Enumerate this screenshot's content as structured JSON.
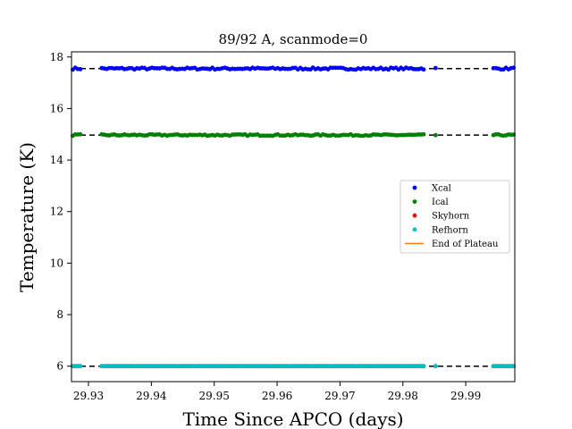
{
  "chart_data": {
    "type": "scatter",
    "title": "89/92 A, scanmode=0",
    "xlabel": "Time Since APCO (days)",
    "ylabel": "Temperature (K)",
    "xlim": [
      29.9273,
      29.9978
    ],
    "ylim": [
      5.4,
      18.2
    ],
    "xticks": [
      29.93,
      29.94,
      29.95,
      29.96,
      29.97,
      29.98,
      29.99
    ],
    "xtick_labels": [
      "29.93",
      "29.94",
      "29.95",
      "29.96",
      "29.97",
      "29.98",
      "29.99"
    ],
    "yticks": [
      6,
      8,
      10,
      12,
      14,
      16,
      18
    ],
    "ytick_labels": [
      "6",
      "8",
      "10",
      "12",
      "14",
      "16",
      "18"
    ],
    "grid": false,
    "legend_position": "right",
    "reference_lines": [
      {
        "y": 17.55,
        "style": "dashed",
        "color": "#000000"
      },
      {
        "y": 14.97,
        "style": "dashed",
        "color": "#000000"
      },
      {
        "y": 6.0,
        "style": "dashed",
        "color": "#000000"
      }
    ],
    "time_segments": [
      {
        "start": 29.9275,
        "end": 29.9289,
        "step": 0.0004
      },
      {
        "start": 29.9321,
        "end": 29.9835,
        "step": 0.0004
      },
      {
        "start": 29.9852,
        "end": 29.9852,
        "step": 0.0004
      },
      {
        "start": 29.9944,
        "end": 29.9976,
        "step": 0.0004
      }
    ],
    "series": [
      {
        "name": "Xcal",
        "color": "#0000ff",
        "marker": "point",
        "y_mean": 17.55,
        "y_spread": 0.04
      },
      {
        "name": "Ical",
        "color": "#008000",
        "marker": "point",
        "y_mean": 14.97,
        "y_spread": 0.03
      },
      {
        "name": "Skyhorn",
        "color": "#ff0000",
        "marker": "point",
        "y_mean": 6.0,
        "y_spread": 0.0
      },
      {
        "name": "Refhorn",
        "color": "#00bfbf",
        "marker": "point",
        "y_mean": 6.0,
        "y_spread": 0.0
      }
    ],
    "legend": [
      {
        "label": "Xcal",
        "color": "#0000ff",
        "kind": "point"
      },
      {
        "label": "Ical",
        "color": "#008000",
        "kind": "point"
      },
      {
        "label": "Skyhorn",
        "color": "#ff0000",
        "kind": "point"
      },
      {
        "label": "Refhorn",
        "color": "#00bfbf",
        "kind": "point"
      },
      {
        "label": "End of Plateau",
        "color": "#ff7f0e",
        "kind": "line"
      }
    ]
  }
}
